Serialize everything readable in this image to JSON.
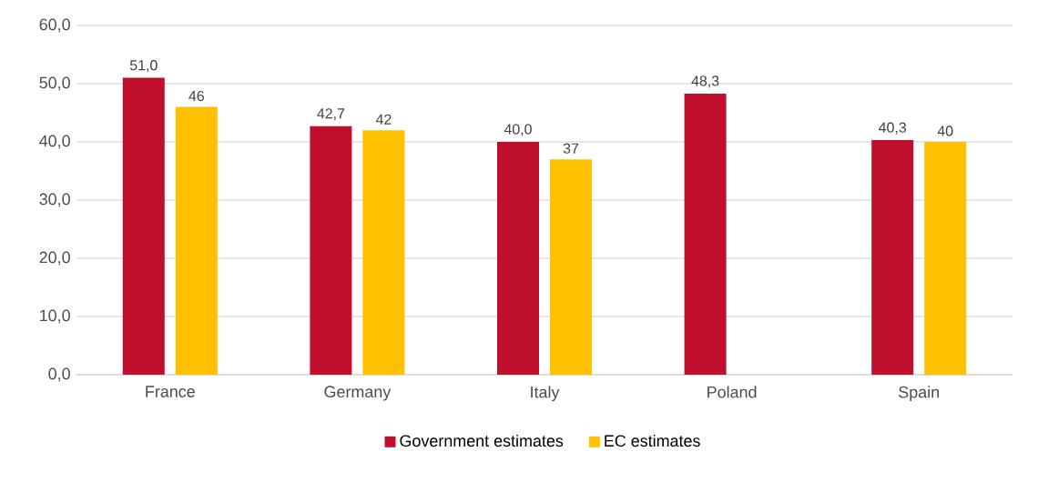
{
  "chart_data": {
    "type": "bar",
    "categories": [
      "France",
      "Germany",
      "Italy",
      "Poland",
      "Spain"
    ],
    "series": [
      {
        "name": "Government estimates",
        "color": "#c00f2c",
        "values": [
          51.0,
          42.7,
          40.0,
          48.3,
          40.3
        ],
        "value_labels": [
          "51,0",
          "42,7",
          "40,0",
          "48,3",
          "40,3"
        ]
      },
      {
        "name": "EC estimates",
        "color": "#ffc000",
        "values": [
          46,
          42,
          37,
          null,
          40
        ],
        "value_labels": [
          "46",
          "42",
          "37",
          null,
          "40"
        ]
      }
    ],
    "ylim": [
      0,
      60
    ],
    "yticks": [
      {
        "value": 0,
        "label": "0,0"
      },
      {
        "value": 10,
        "label": "10,0"
      },
      {
        "value": 20,
        "label": "20,0"
      },
      {
        "value": 30,
        "label": "30,0"
      },
      {
        "value": 40,
        "label": "40,0"
      },
      {
        "value": 50,
        "label": "50,0"
      },
      {
        "value": 60,
        "label": "60,0"
      }
    ],
    "grid": "y",
    "legend": "bottom"
  }
}
